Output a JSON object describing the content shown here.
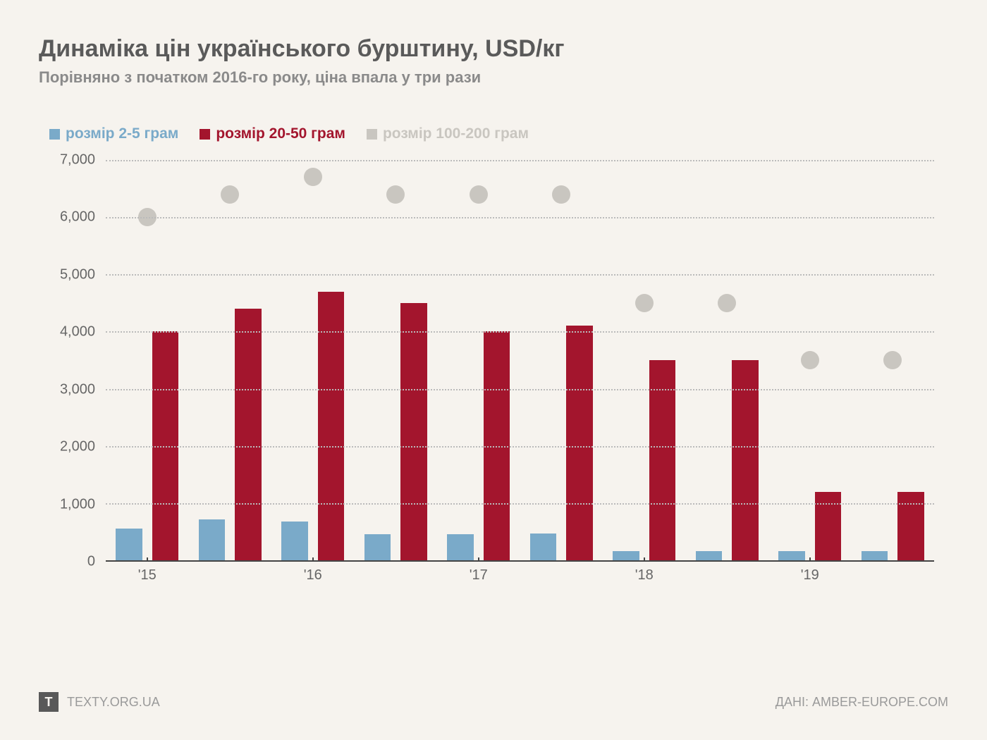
{
  "title": "Динаміка цін українського бурштину, USD/кг",
  "subtitle": "Порівняно з початком 2016-го року, ціна впала у три рази",
  "legend": [
    {
      "label": "розмір 2-5 грам",
      "color": "#7aaac9",
      "shape": "square"
    },
    {
      "label": "розмір 20-50 грам",
      "color": "#a3152d",
      "shape": "square"
    },
    {
      "label": "розмір 100-200 грам",
      "color": "#c9c6c0",
      "shape": "square"
    }
  ],
  "chart": {
    "type": "bar+scatter",
    "ylim": [
      0,
      7000
    ],
    "ytick_step": 1000,
    "yticks": [
      "0",
      "1,000",
      "2,000",
      "3,000",
      "4,000",
      "5,000",
      "6,000",
      "7,000"
    ],
    "xticks": [
      "'15",
      "'16",
      "'17",
      "'18",
      "'19"
    ],
    "xtick_positions": [
      0.05,
      0.25,
      0.45,
      0.65,
      0.85
    ],
    "grid_color": "#bbbbbb",
    "axis_color": "#444444",
    "background_color": "#f6f3ee",
    "n_periods": 10,
    "group_gap": 0.012,
    "bar_width": 0.032,
    "dot_radius": 13,
    "series": {
      "size_2_5": {
        "color": "#7aaac9",
        "type": "bar",
        "values": [
          550,
          720,
          680,
          460,
          460,
          470,
          160,
          160,
          160,
          160
        ]
      },
      "size_20_50": {
        "color": "#a3152d",
        "type": "bar",
        "values": [
          4000,
          4400,
          4700,
          4500,
          4000,
          4100,
          3500,
          3500,
          1200,
          1200
        ]
      },
      "size_100_200": {
        "color": "#c9c6c0",
        "type": "dot",
        "values": [
          6000,
          6400,
          6700,
          6400,
          6400,
          6400,
          4500,
          4500,
          3500,
          3500
        ]
      }
    }
  },
  "footer": {
    "logo_letter": "Т",
    "logo_text": "TEXTY.ORG.UA",
    "source": "ДАНІ: AMBER-EUROPE.COM"
  }
}
